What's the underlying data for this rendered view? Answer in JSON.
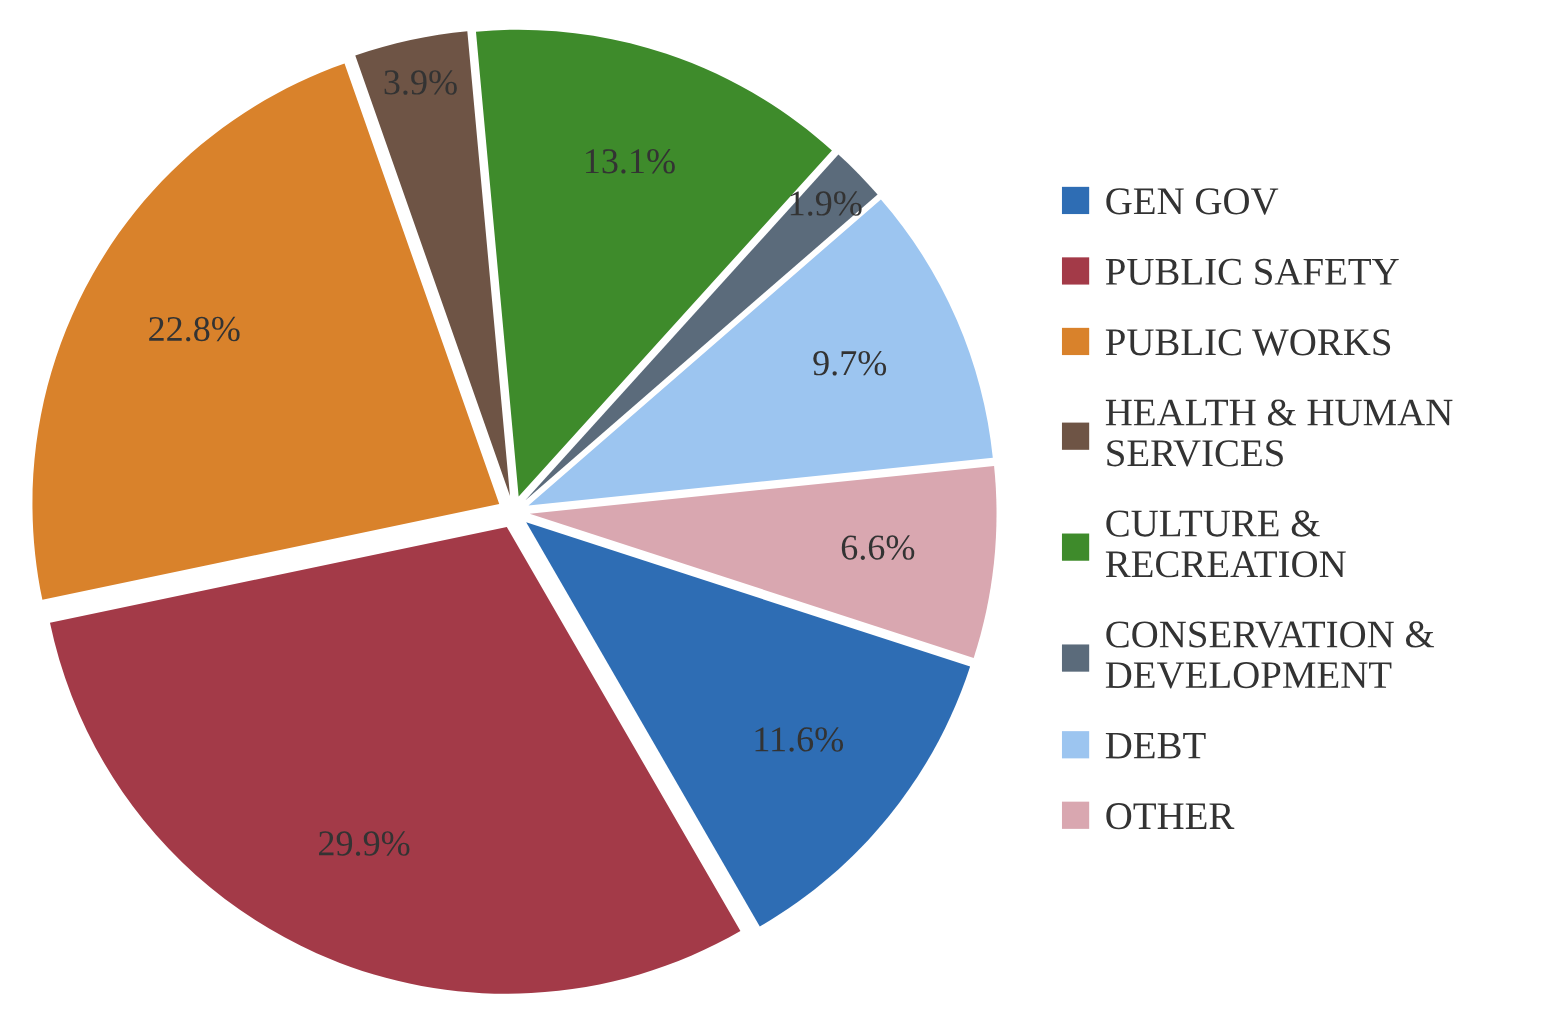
{
  "chart_data": {
    "type": "pie",
    "categories": [
      "GEN GOV",
      "PUBLIC SAFETY",
      "PUBLIC WORKS",
      "HEALTH & HUMAN\nSERVICES",
      "CULTURE &\nRECREATION",
      "CONSERVATION &\nDEVELOPMENT",
      "DEBT",
      "OTHER"
    ],
    "values": [
      11.6,
      29.9,
      22.8,
      3.9,
      13.1,
      1.9,
      9.7,
      6.6
    ],
    "colors": [
      "#2e6db4",
      "#a33a48",
      "#d9822b",
      "#6e5445",
      "#3e8b2b",
      "#5b6b7b",
      "#9cc5f0",
      "#d9a7b0"
    ],
    "value_labels": [
      "11.6%",
      "29.9%",
      "22.8%",
      "3.9%",
      "13.1%",
      "1.9%",
      "9.7%",
      "6.6%"
    ],
    "legend": "right"
  }
}
